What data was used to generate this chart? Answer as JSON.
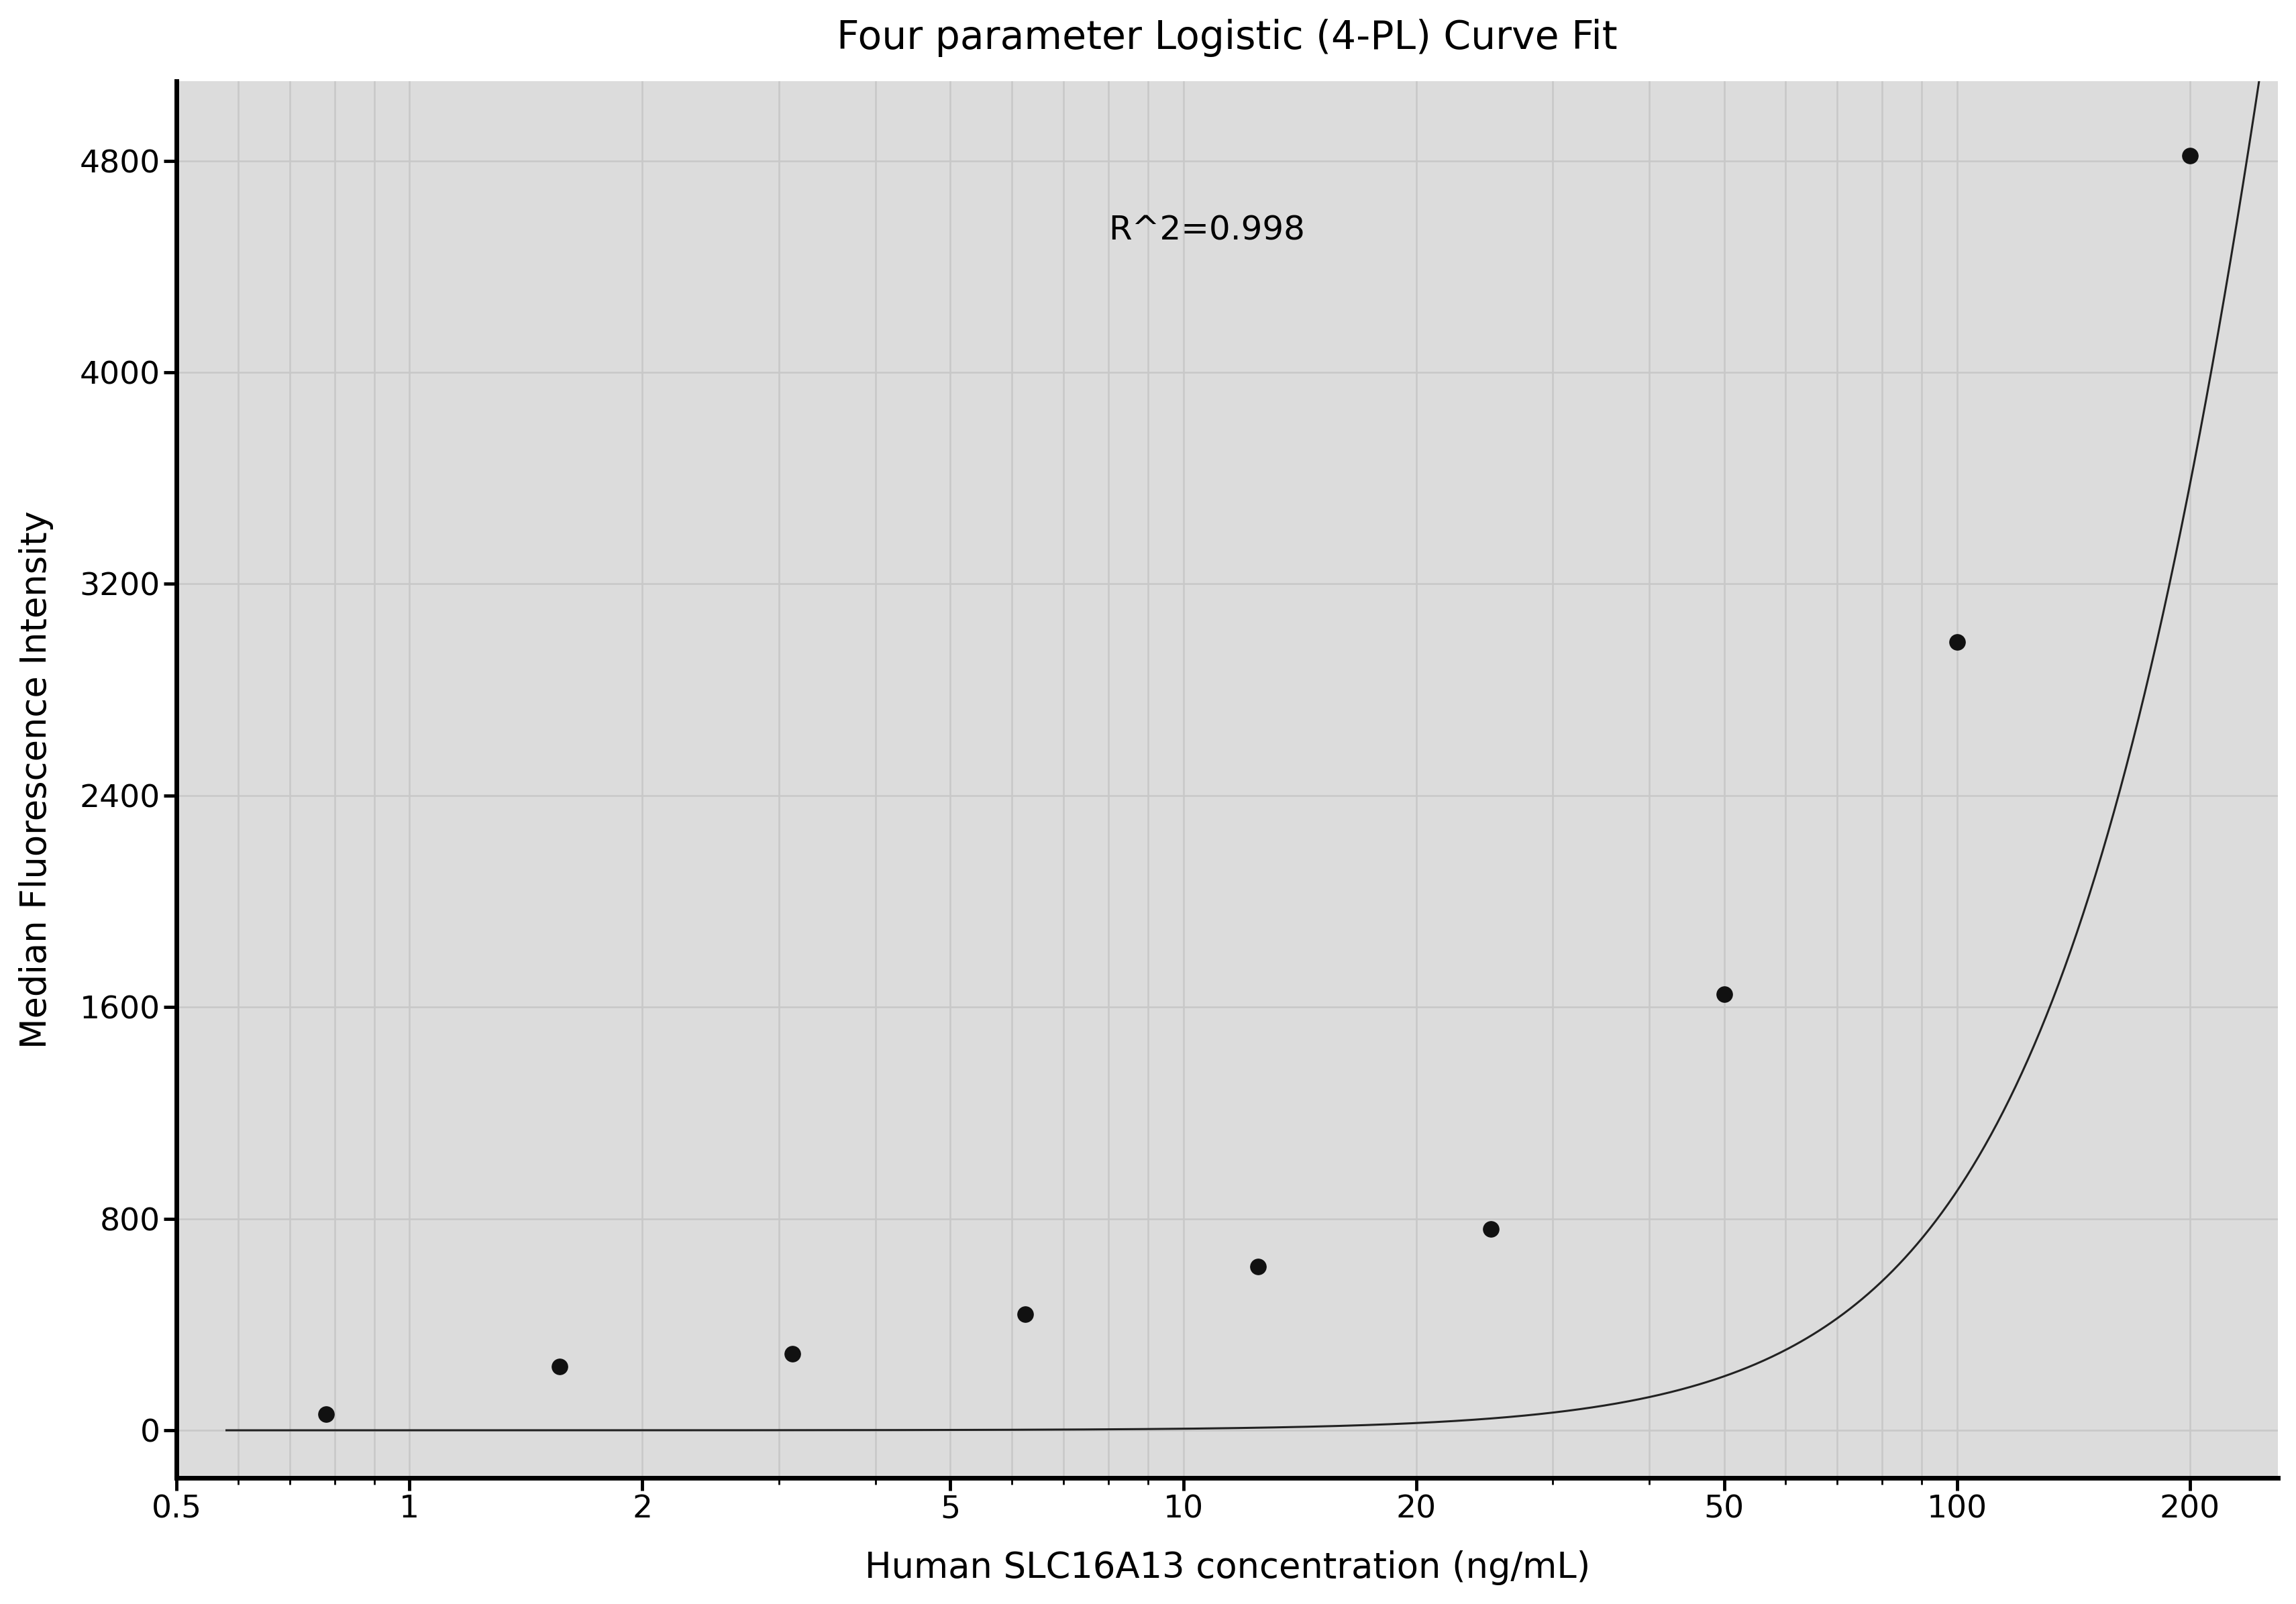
{
  "title": "Four parameter Logistic (4-PL) Curve Fit",
  "xlabel": "Human SLC16A13 concentration (ng/mL)",
  "ylabel": "Median Fluorescence Intensity",
  "r_squared": "R^2=0.998",
  "data_x": [
    0.78,
    1.563,
    3.125,
    6.25,
    12.5,
    25,
    50,
    100,
    200
  ],
  "data_y": [
    60,
    240,
    290,
    440,
    620,
    760,
    1650,
    2980,
    4820
  ],
  "xlim_low": 0.55,
  "xlim_high": 260,
  "ylim": [
    -180,
    5100
  ],
  "yticks": [
    0,
    800,
    1600,
    2400,
    3200,
    4000,
    4800
  ],
  "xticks": [
    0.5,
    1,
    2,
    5,
    10,
    20,
    50,
    100,
    200
  ],
  "xtick_labels": [
    "0.5",
    "1",
    "2",
    "5",
    "10",
    "20",
    "50",
    "100",
    "200"
  ],
  "grid_color": "#c8c8c8",
  "bg_color": "#dcdcdc",
  "line_color": "#222222",
  "dot_color": "#111111",
  "title_fontsize": 42,
  "label_fontsize": 38,
  "tick_fontsize": 34,
  "annotation_fontsize": 36,
  "r2_x": 8.0,
  "r2_y": 4500,
  "4pl_A": 0,
  "4pl_B": 2.2,
  "4pl_C": 400,
  "4pl_D": 20000
}
